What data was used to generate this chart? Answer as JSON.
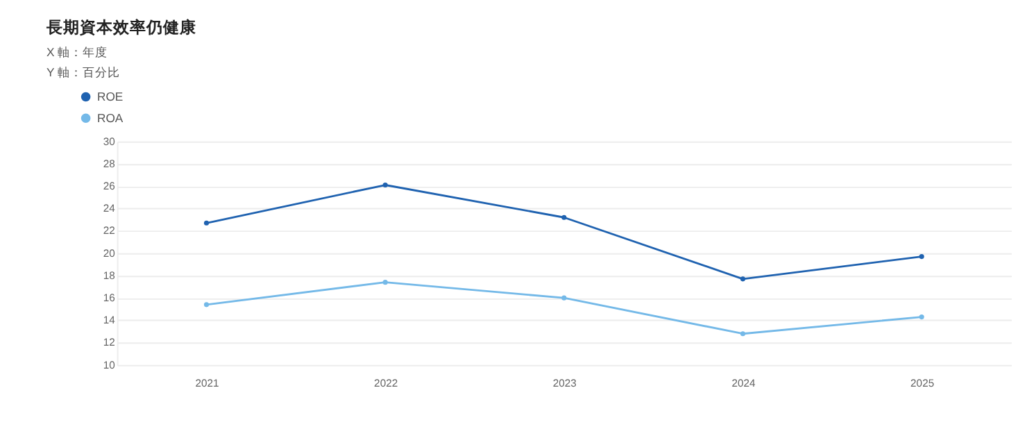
{
  "chart_data": {
    "type": "line",
    "title": "長期資本效率仍健康",
    "annotations": [
      "X 軸：年度",
      "Y 軸：百分比"
    ],
    "categories": [
      "2021",
      "2022",
      "2023",
      "2024",
      "2025"
    ],
    "series": [
      {
        "name": "ROE",
        "color": "#1f62b0",
        "values": [
          22.7,
          26.1,
          23.2,
          17.7,
          19.7
        ]
      },
      {
        "name": "ROA",
        "color": "#74b9e8",
        "values": [
          15.4,
          17.4,
          16.0,
          12.8,
          14.3
        ]
      }
    ],
    "ylim": [
      10,
      30
    ],
    "yticks": [
      10,
      12,
      14,
      16,
      18,
      20,
      22,
      24,
      26,
      28,
      30
    ],
    "grid": "y",
    "legend": "top left",
    "marker": "circle",
    "line_style": "solid"
  }
}
